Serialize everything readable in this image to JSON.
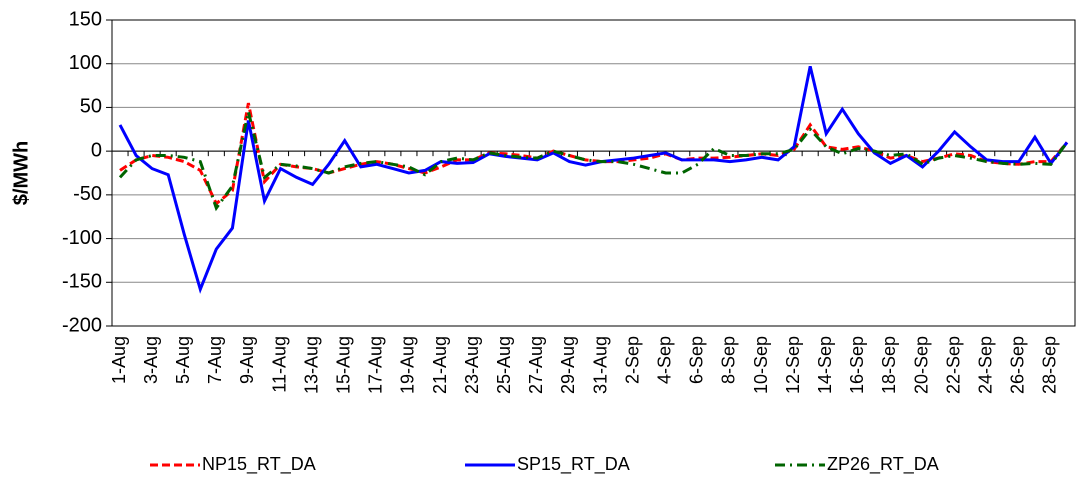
{
  "chart_data": {
    "type": "line",
    "y_label": "$/MWh",
    "categories": [
      "1-Aug",
      null,
      "3-Aug",
      null,
      "5-Aug",
      null,
      "7-Aug",
      null,
      "9-Aug",
      null,
      "11-Aug",
      null,
      "13-Aug",
      null,
      "15-Aug",
      null,
      "17-Aug",
      null,
      "19-Aug",
      null,
      "21-Aug",
      null,
      "23-Aug",
      null,
      "25-Aug",
      null,
      "27-Aug",
      null,
      "29-Aug",
      null,
      "31-Aug",
      null,
      "2-Sep",
      null,
      "4-Sep",
      null,
      "6-Sep",
      null,
      "8-Sep",
      null,
      "10-Sep",
      null,
      "12-Sep",
      null,
      "14-Sep",
      null,
      "16-Sep",
      null,
      "18-Sep",
      null,
      "20-Sep",
      null,
      "22-Sep",
      null,
      "24-Sep",
      null,
      "26-Sep",
      null,
      "28-Sep",
      null
    ],
    "series": [
      {
        "name": "NP15_RT_DA",
        "color": "#ff0000",
        "style": "dashed",
        "values": [
          -22,
          -10,
          -5,
          -7,
          -12,
          -22,
          -60,
          -45,
          55,
          -35,
          -15,
          -18,
          -20,
          -25,
          -20,
          -15,
          -12,
          -15,
          -20,
          -25,
          -18,
          -10,
          -10,
          -2,
          -3,
          -5,
          -8,
          0,
          -5,
          -10,
          -12,
          -12,
          -10,
          -8,
          -3,
          -10,
          -8,
          -8,
          -7,
          -5,
          -3,
          -5,
          2,
          30,
          5,
          2,
          5,
          0,
          -8,
          -5,
          -12,
          -8,
          -3,
          -5,
          -12,
          -14,
          -15,
          -12,
          -12,
          10
        ]
      },
      {
        "name": "SP15_RT_DA",
        "color": "#0000ff",
        "style": "solid",
        "values": [
          30,
          -5,
          -20,
          -27,
          -95,
          -158,
          -112,
          -88,
          35,
          -57,
          -20,
          -30,
          -38,
          -15,
          12,
          -18,
          -15,
          -20,
          -25,
          -22,
          -12,
          -14,
          -13,
          -3,
          -6,
          -8,
          -10,
          -2,
          -12,
          -16,
          -12,
          -10,
          -8,
          -5,
          -2,
          -10,
          -10,
          -10,
          -12,
          -10,
          -7,
          -10,
          5,
          97,
          20,
          48,
          20,
          -2,
          -14,
          -5,
          -18,
          0,
          22,
          5,
          -10,
          -12,
          -12,
          16,
          -14,
          10
        ]
      },
      {
        "name": "ZP26_RT_DA",
        "color": "#006400",
        "style": "dashdot",
        "values": [
          -30,
          -10,
          -5,
          -5,
          -7,
          -12,
          -65,
          -40,
          45,
          -30,
          -15,
          -17,
          -20,
          -25,
          -18,
          -14,
          -12,
          -15,
          -18,
          -27,
          -12,
          -8,
          -10,
          -2,
          -5,
          -7,
          -8,
          0,
          -5,
          -10,
          -12,
          -12,
          -15,
          -20,
          -25,
          -25,
          -15,
          3,
          -5,
          -5,
          -3,
          -3,
          2,
          25,
          5,
          -3,
          3,
          0,
          -5,
          -3,
          -15,
          -8,
          -5,
          -8,
          -12,
          -14,
          -15,
          -14,
          -15,
          10
        ]
      }
    ],
    "ylim": [
      -200,
      150
    ],
    "yticks": [
      -200,
      -150,
      -100,
      -50,
      0,
      50,
      100,
      150
    ],
    "grid": true
  }
}
